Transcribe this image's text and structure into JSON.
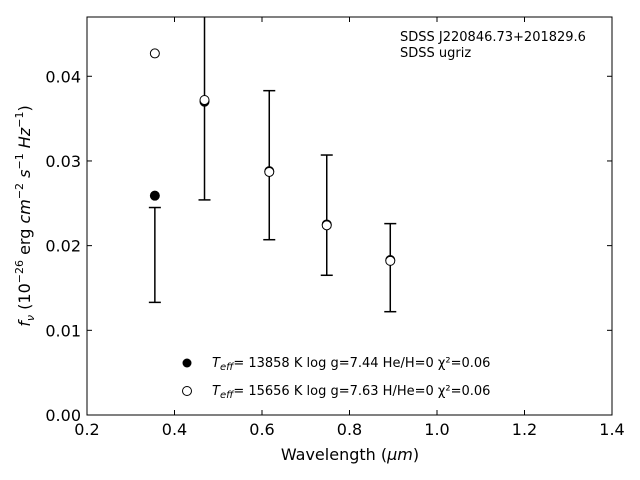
{
  "chart_data": {
    "type": "scatter",
    "xlabel": "Wavelength",
    "xlabel_unit": "μm",
    "ylabel_symbol": "f",
    "ylabel_sub": "ν",
    "ylabel_units": "erg",
    "annotation_line1": "SDSS J220846.73+201829.6",
    "annotation_line2": "SDSS ugriz",
    "xlim": [
      0.2,
      1.4
    ],
    "ylim": [
      0.0,
      0.047
    ],
    "xticks": [
      0.2,
      0.4,
      0.6,
      0.8,
      1.0,
      1.2,
      1.4
    ],
    "xtick_labels": [
      "0.2",
      "0.4",
      "0.6",
      "0.8",
      "1.0",
      "1.2",
      "1.4"
    ],
    "yticks": [
      0.0,
      0.01,
      0.02,
      0.03,
      0.04
    ],
    "ytick_labels": [
      "0.00",
      "0.01",
      "0.02",
      "0.03",
      "0.04"
    ],
    "grid": false,
    "observed": {
      "x": [
        0.3551,
        0.4686,
        0.6166,
        0.748,
        0.8932
      ],
      "y": [
        0.0189,
        0.0392,
        0.0295,
        0.0236,
        0.0174
      ],
      "yerr": [
        0.0056,
        0.0138,
        0.0088,
        0.0071,
        0.0052
      ]
    },
    "series": [
      {
        "marker": "filled-circle",
        "legend": "= 13858 K  log g=7.44  He/H=0  χ²=0.06",
        "x": [
          0.3551,
          0.4686,
          0.6166,
          0.748,
          0.8932
        ],
        "y": [
          0.0259,
          0.037,
          0.0288,
          0.0225,
          0.0183
        ]
      },
      {
        "marker": "open-circle",
        "legend": "= 15656 K  log g=7.63  H/He=0  χ²=0.06",
        "x": [
          0.3551,
          0.4686,
          0.6166,
          0.748,
          0.8932
        ],
        "y": [
          0.0427,
          0.0372,
          0.0287,
          0.0224,
          0.0182
        ]
      }
    ],
    "legend_placement": "lower-center",
    "colors": {
      "marker": "#000000",
      "errorbar": "#000000",
      "axes": "#000000"
    }
  }
}
